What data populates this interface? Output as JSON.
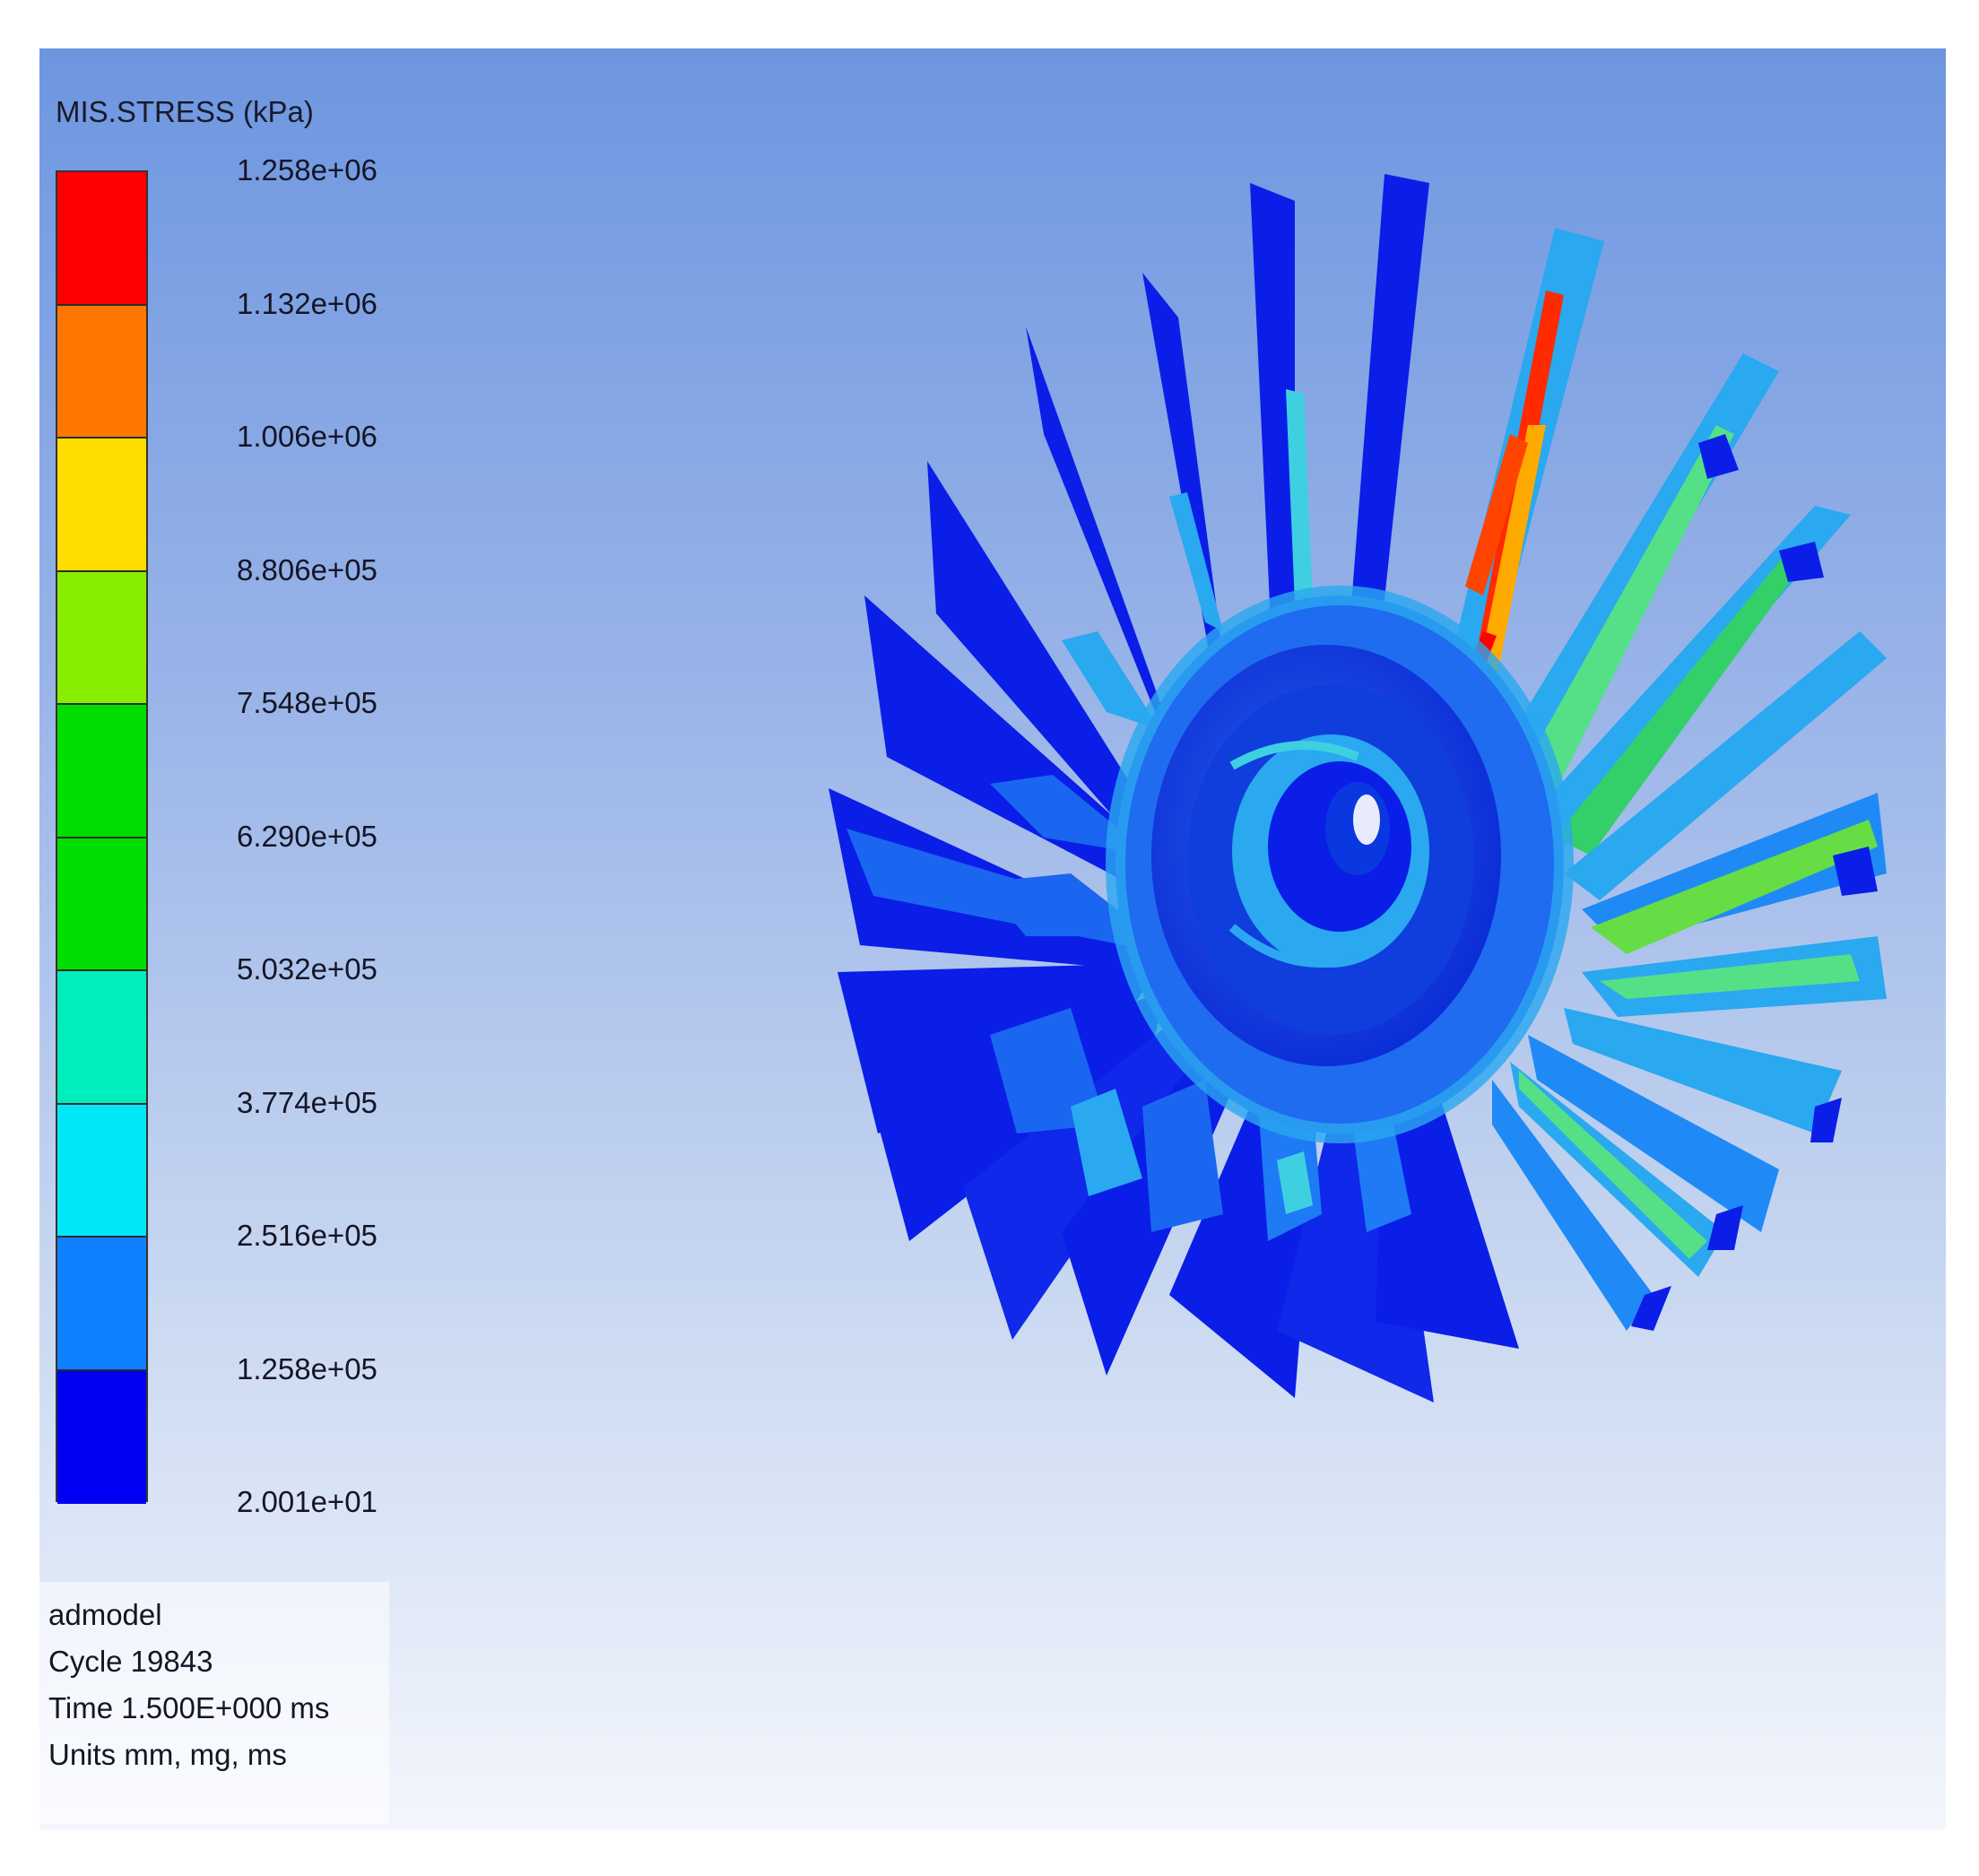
{
  "legend": {
    "title": "MIS.STRESS (kPa)",
    "colors": [
      "#ff0000",
      "#ff7700",
      "#ffdd00",
      "#88ee00",
      "#00dd00",
      "#00dd00",
      "#00eebb",
      "#00e8f8",
      "#0f80ff",
      "#0000f2"
    ],
    "ticks": [
      "1.258e+06",
      "1.132e+06",
      "1.006e+06",
      "8.806e+05",
      "7.548e+05",
      "6.290e+05",
      "5.032e+05",
      "3.774e+05",
      "2.516e+05",
      "1.258e+05",
      "2.001e+01"
    ]
  },
  "info": {
    "model": "admodel",
    "cycle": "Cycle 19843",
    "time": "Time 1.500E+000 ms",
    "units": "Units mm, mg, ms"
  }
}
